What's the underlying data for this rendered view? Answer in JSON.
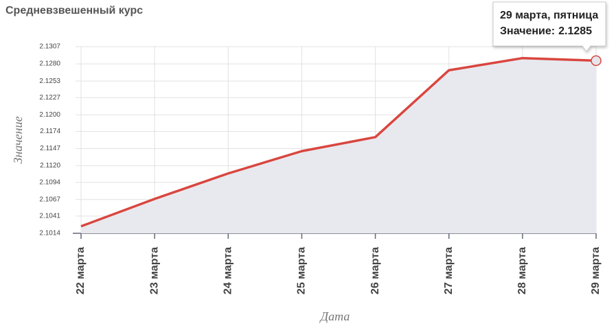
{
  "chart_data": {
    "type": "line",
    "title": "Средневзвешенный курс",
    "x_label": "Дата",
    "y_label": "Значение",
    "categories": [
      "22 марта",
      "23 марта",
      "24 марта",
      "25 марта",
      "26 марта",
      "27 марта",
      "28 марта",
      "29 марта"
    ],
    "values": [
      2.1025,
      2.1068,
      2.1108,
      2.1143,
      2.1165,
      2.127,
      2.1289,
      2.1285
    ],
    "color": "#d9463f",
    "area_color": "#e8e9ee",
    "ylim": [
      2.1014,
      2.1307
    ],
    "yticks": [
      {
        "value": 2.1014,
        "label": "2.1014"
      },
      2.1041,
      2.1067,
      2.1094,
      {
        "value": 2.112,
        "label": "2.1120"
      },
      2.1147,
      2.1174,
      {
        "value": 2.12,
        "label": "2.1200"
      },
      2.1227,
      2.1253,
      {
        "value": 2.128,
        "label": "2.1280"
      },
      2.1307
    ],
    "grid": true,
    "tooltip": {
      "title": "29 марта, пятница",
      "label": "Значение:",
      "index": 7
    }
  }
}
